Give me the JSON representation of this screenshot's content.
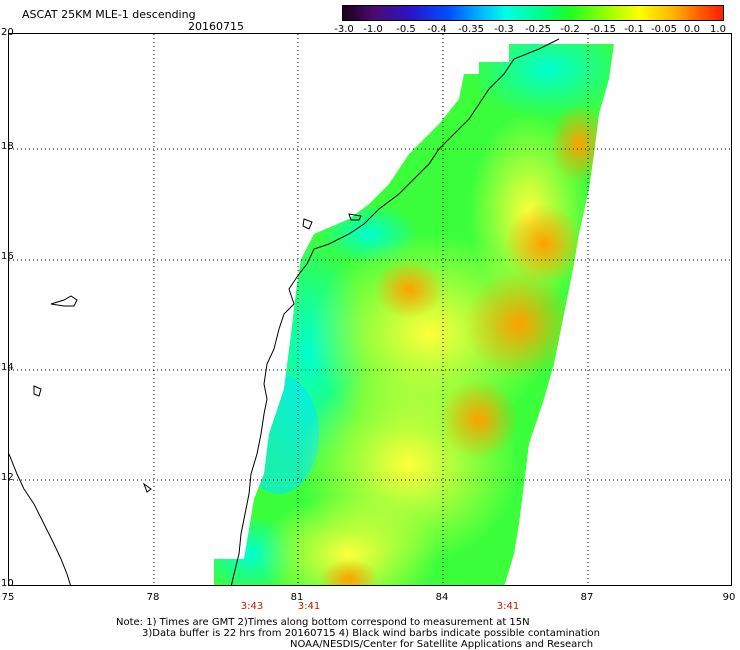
{
  "header": {
    "title": "ASCAT 25KM MLE-1 descending",
    "date": "20160715"
  },
  "colorbar": {
    "labels": [
      "-3.0",
      "-1.0",
      "-0.5",
      "-0.4",
      "-0.35",
      "-0.3",
      "-0.25",
      "-0.2",
      "-0.15",
      "-0.1",
      "-0.05",
      "0.0",
      "1.0"
    ]
  },
  "map": {
    "lat_labels": [
      "20",
      "18",
      "16",
      "14",
      "12",
      "10"
    ],
    "lon_labels": [
      "75",
      "78",
      "81",
      "84",
      "87",
      "90"
    ],
    "time_labels": [
      "3:43",
      "3:41",
      "3:41"
    ]
  },
  "footer": {
    "note_line1": "Note: 1) Times are GMT 2)Times along bottom correspond to measurement at 15N",
    "note_line2": "3)Data buffer is 22 hrs from 20160715 4) Black wind barbs indicate possible contamination",
    "note_line3": "NOAA/NESDIS/Center for Satellite Applications and Research"
  },
  "colors": {
    "swath_low": "#00ffe6",
    "swath_mid": "#1eff1e",
    "swath_high": "#ffb400",
    "grid": "#000000"
  }
}
